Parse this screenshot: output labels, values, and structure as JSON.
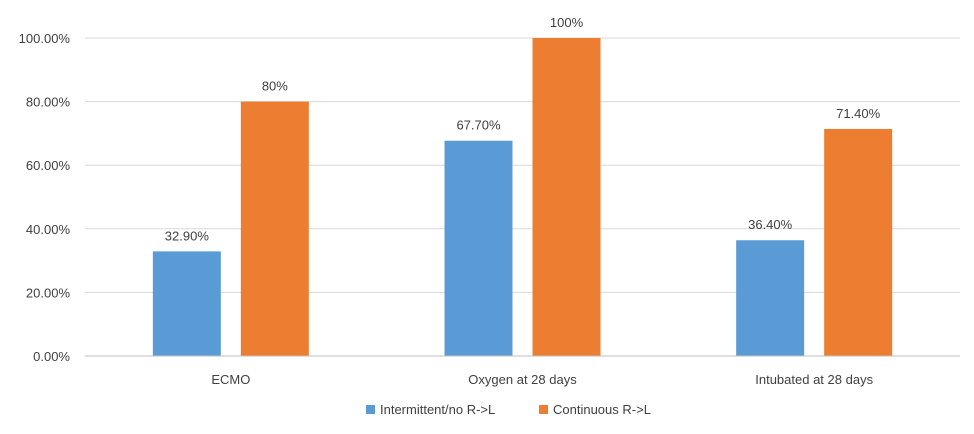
{
  "chart_data": {
    "type": "bar",
    "categories": [
      "ECMO",
      "Oxygen at 28 days",
      "Intubated at 28 days"
    ],
    "series": [
      {
        "name": "Intermittent/no R->L",
        "values": [
          32.9,
          67.7,
          36.4
        ],
        "labels": [
          "32.90%",
          "67.70%",
          "36.40%"
        ],
        "color": "#5B9BD5"
      },
      {
        "name": "Continuous R->L",
        "values": [
          80,
          100,
          71.4
        ],
        "labels": [
          "80%",
          "100%",
          "71.40%"
        ],
        "color": "#ED7D31"
      }
    ],
    "yticks": [
      "0.00%",
      "20.00%",
      "40.00%",
      "60.00%",
      "80.00%",
      "100.00%"
    ],
    "ytick_values": [
      0,
      20,
      40,
      60,
      80,
      100
    ],
    "ylim": [
      0,
      100
    ],
    "grid": true,
    "legend_position": "bottom",
    "gridline_color": "#D9D9D9",
    "text_color": "#404040"
  }
}
